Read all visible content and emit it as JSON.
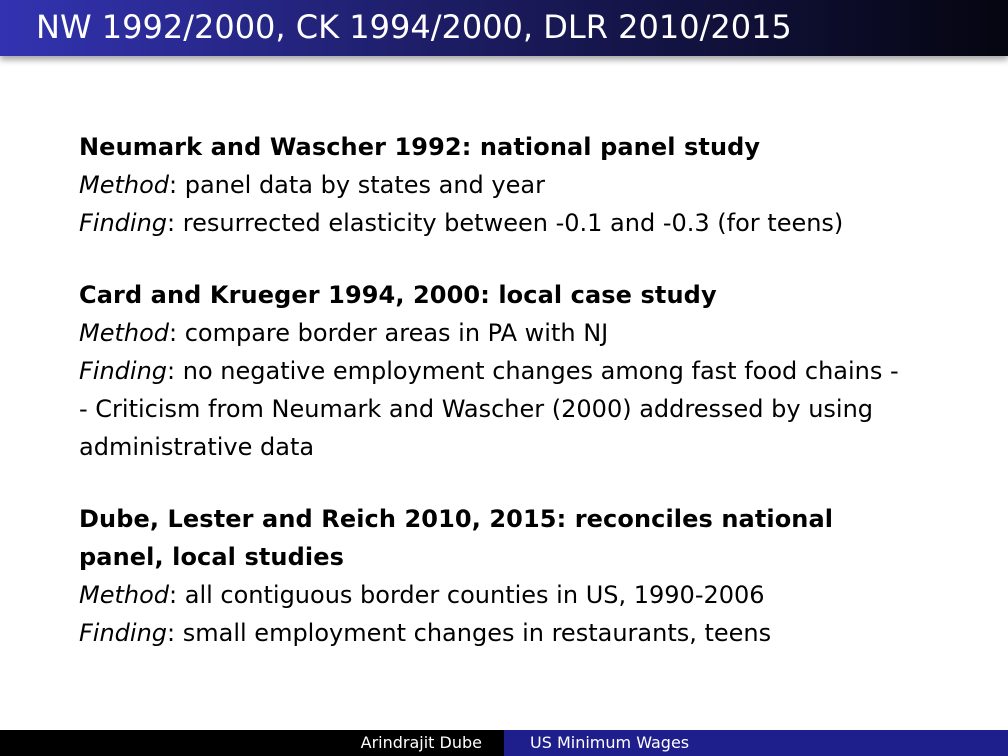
{
  "slide": {
    "title": "NW 1992/2000, CK 1994/2000, DLR 2010/2015"
  },
  "labels": {
    "method": "Method",
    "finding": "Finding"
  },
  "studies": [
    {
      "heading": "Neumark and Wascher 1992: national panel study",
      "method": ": panel data by states and year",
      "finding": ": resurrected elasticity between -0.1 and -0.3 (for teens)"
    },
    {
      "heading": "Card and Krueger 1994, 2000: local case study",
      "method": ": compare border areas in PA with NJ",
      "finding": ": no negative employment changes among fast food chains -",
      "finding_cont_1": "- Criticism from Neumark and Wascher (2000) addressed by using",
      "finding_cont_2": "administrative data"
    },
    {
      "heading_line_1": "Dube, Lester and Reich 2010, 2015: reconciles national",
      "heading_line_2": "panel, local studies",
      "method": ": all contiguous border counties in US, 1990-2006",
      "finding": ": small employment changes in restaurants, teens"
    }
  ],
  "footer": {
    "author": "Arindrajit Dube",
    "title": "US Minimum Wages"
  }
}
